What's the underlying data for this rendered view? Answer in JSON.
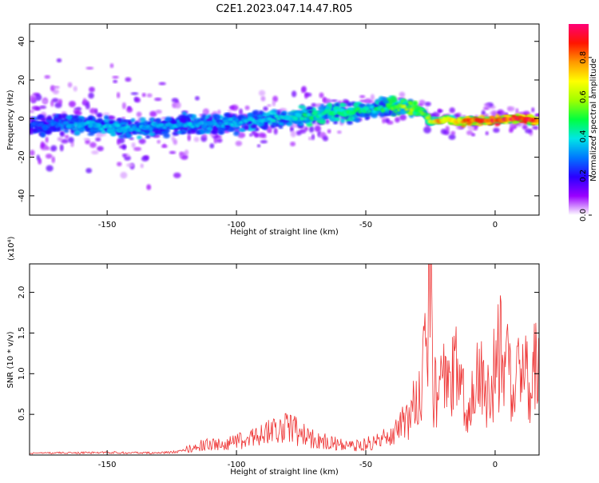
{
  "figure_title": "C2E1.2023.047.14.47.R05",
  "chart_data": [
    {
      "type": "heatmap",
      "xlabel": "Height of straight line (km)",
      "ylabel": "Frequency (Hz)",
      "xlim": [
        -180,
        17
      ],
      "ylim": [
        -50,
        49
      ],
      "x_ticks": [
        -150,
        -100,
        -50,
        0
      ],
      "x_tick_labels": [
        "-150",
        "-100",
        "-50",
        "0"
      ],
      "y_ticks": [
        40,
        20,
        0,
        -20,
        -40
      ],
      "y_tick_labels": [
        "40",
        "20",
        "0",
        "-20",
        "-40"
      ],
      "colorbar": {
        "label": "Normalized spectral amplitude",
        "range": [
          0,
          0.97
        ],
        "ticks": [
          0.0,
          0.2,
          0.4,
          0.6,
          0.8
        ],
        "tick_labels": [
          "0.0",
          "0.2",
          "0.4",
          "0.6",
          "0.8"
        ],
        "colormap": [
          "#ffffff",
          "#9a00ff",
          "#2a00ff",
          "#0077ff",
          "#00e6e6",
          "#00ff40",
          "#a0ff00",
          "#ffff00",
          "#ff9900",
          "#ff1500",
          "#ff0077"
        ]
      },
      "ridge": {
        "x": [
          -180,
          -170,
          -160,
          -150,
          -140,
          -130,
          -120,
          -110,
          -100,
          -90,
          -80,
          -70,
          -60,
          -50,
          -45,
          -40,
          -35,
          -30,
          -27,
          -25,
          -22,
          -18,
          -15,
          -10,
          -5,
          0,
          5,
          10,
          15
        ],
        "freq_hz": [
          -4,
          -3,
          -3,
          -4,
          -5,
          -4,
          -3,
          -3,
          -2,
          -1,
          0,
          2,
          3,
          4,
          5,
          6,
          6,
          5,
          2,
          -2,
          -1,
          0,
          -2,
          -1,
          -1,
          -1,
          0,
          0,
          -1
        ],
        "amplitude": [
          0.25,
          0.3,
          0.35,
          0.35,
          0.35,
          0.35,
          0.35,
          0.35,
          0.35,
          0.35,
          0.4,
          0.45,
          0.45,
          0.45,
          0.45,
          0.5,
          0.6,
          0.55,
          0.5,
          0.65,
          0.75,
          0.7,
          0.75,
          0.8,
          0.85,
          0.9,
          0.9,
          0.9,
          0.85
        ]
      }
    },
    {
      "type": "line",
      "xlabel": "Height of straight line (km)",
      "ylabel": "SNR (10 * v/v)",
      "y_multiplier": "(x10⁴)",
      "xlim": [
        -180,
        17
      ],
      "ylim": [
        0,
        2.35
      ],
      "x_ticks": [
        -150,
        -100,
        -50,
        0
      ],
      "x_tick_labels": [
        "-150",
        "-100",
        "-50",
        "0"
      ],
      "y_ticks": [
        0.5,
        1.0,
        1.5,
        2.0
      ],
      "y_tick_labels": [
        "0.5",
        "1.0",
        "1.5",
        "2.0"
      ],
      "color": "#ee3333",
      "series": [
        {
          "x": [
            -180,
            -170,
            -160,
            -150,
            -140,
            -130,
            -125,
            -120,
            -115,
            -110,
            -105,
            -100,
            -95,
            -90,
            -85,
            -80,
            -75,
            -70,
            -65,
            -60,
            -55,
            -50,
            -45,
            -40,
            -35,
            -32,
            -30,
            -28,
            -26,
            -25,
            -24,
            -22,
            -20,
            -18,
            -15,
            -12,
            -10,
            -8,
            -5,
            -3,
            0,
            3,
            5,
            7,
            9,
            11,
            13,
            15,
            17
          ],
          "values": [
            0.03,
            0.04,
            0.04,
            0.05,
            0.04,
            0.04,
            0.05,
            0.08,
            0.12,
            0.15,
            0.14,
            0.18,
            0.22,
            0.3,
            0.35,
            0.4,
            0.28,
            0.22,
            0.18,
            0.15,
            0.12,
            0.15,
            0.2,
            0.3,
            0.45,
            0.6,
            0.75,
            1.15,
            1.6,
            2.3,
            0.9,
            0.75,
            1.0,
            0.9,
            1.2,
            0.7,
            0.65,
            1.05,
            1.0,
            0.8,
            1.15,
            1.5,
            1.25,
            0.6,
            1.3,
            1.4,
            1.05,
            1.25,
            1.2
          ]
        }
      ]
    }
  ]
}
